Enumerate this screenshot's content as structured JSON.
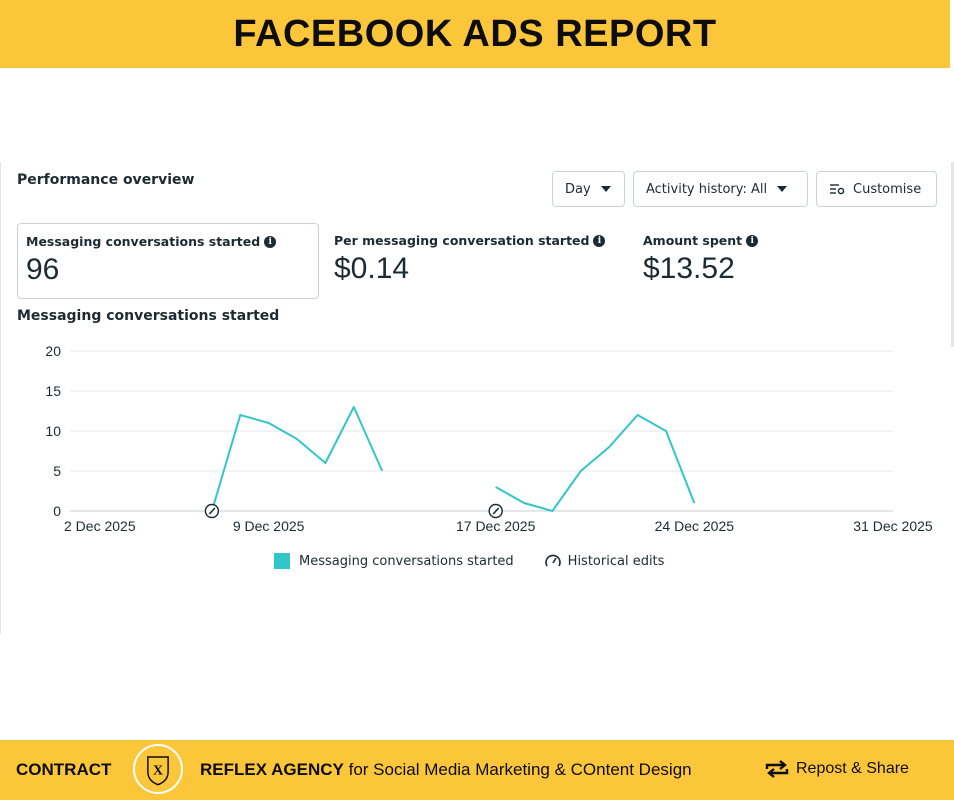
{
  "banner": {
    "title": "FACEBOOK ADS REPORT"
  },
  "performance": {
    "title": "Performance overview",
    "controls": {
      "day": "Day",
      "activity": "Activity history: All",
      "customise": "Customise"
    },
    "metrics": [
      {
        "label": "Messaging conversations started",
        "value": "96"
      },
      {
        "label": "Per messaging conversation started",
        "value": "$0.14"
      },
      {
        "label": "Amount spent",
        "value": "$13.52"
      }
    ]
  },
  "chart_title": "Messaging conversations started",
  "chart_data": {
    "type": "line",
    "title": "Messaging conversations started",
    "xlabel": "",
    "ylabel": "",
    "ylim": [
      0,
      20
    ],
    "yticks": [
      0,
      5,
      10,
      15,
      20
    ],
    "x_range": [
      "2025-12-02",
      "2025-12-31"
    ],
    "xtick_labels": [
      "2 Dec 2025",
      "9 Dec 2025",
      "17 Dec 2025",
      "24 Dec 2025",
      "31 Dec 2025"
    ],
    "xtick_dates": [
      "2025-12-02",
      "2025-12-09",
      "2025-12-17",
      "2025-12-24",
      "2025-12-31"
    ],
    "grid": true,
    "color": "#33c6c8",
    "series": [
      {
        "name": "Messaging conversations started",
        "segments": [
          [
            [
              "2025-12-07",
              0
            ],
            [
              "2025-12-08",
              12
            ],
            [
              "2025-12-09",
              11
            ],
            [
              "2025-12-10",
              9
            ],
            [
              "2025-12-11",
              6
            ],
            [
              "2025-12-12",
              13
            ],
            [
              "2025-12-13",
              5
            ]
          ],
          [
            [
              "2025-12-17",
              3
            ],
            [
              "2025-12-18",
              1
            ],
            [
              "2025-12-19",
              0
            ],
            [
              "2025-12-20",
              5
            ],
            [
              "2025-12-21",
              8
            ],
            [
              "2025-12-22",
              12
            ],
            [
              "2025-12-23",
              10
            ],
            [
              "2025-12-24",
              1
            ]
          ]
        ]
      }
    ],
    "historical_edits": [
      "2025-12-07",
      "2025-12-17"
    ],
    "legend": {
      "placement": "bottom",
      "series_label": "Messaging conversations started",
      "edits_label": "Historical edits"
    }
  },
  "footer": {
    "contract": "CONTRACT",
    "agency_bold": "REFLEX AGENCY",
    "agency_rest": " for Social Media Marketing & COntent Design",
    "repost": "Repost & Share",
    "logo_letter": "X"
  }
}
